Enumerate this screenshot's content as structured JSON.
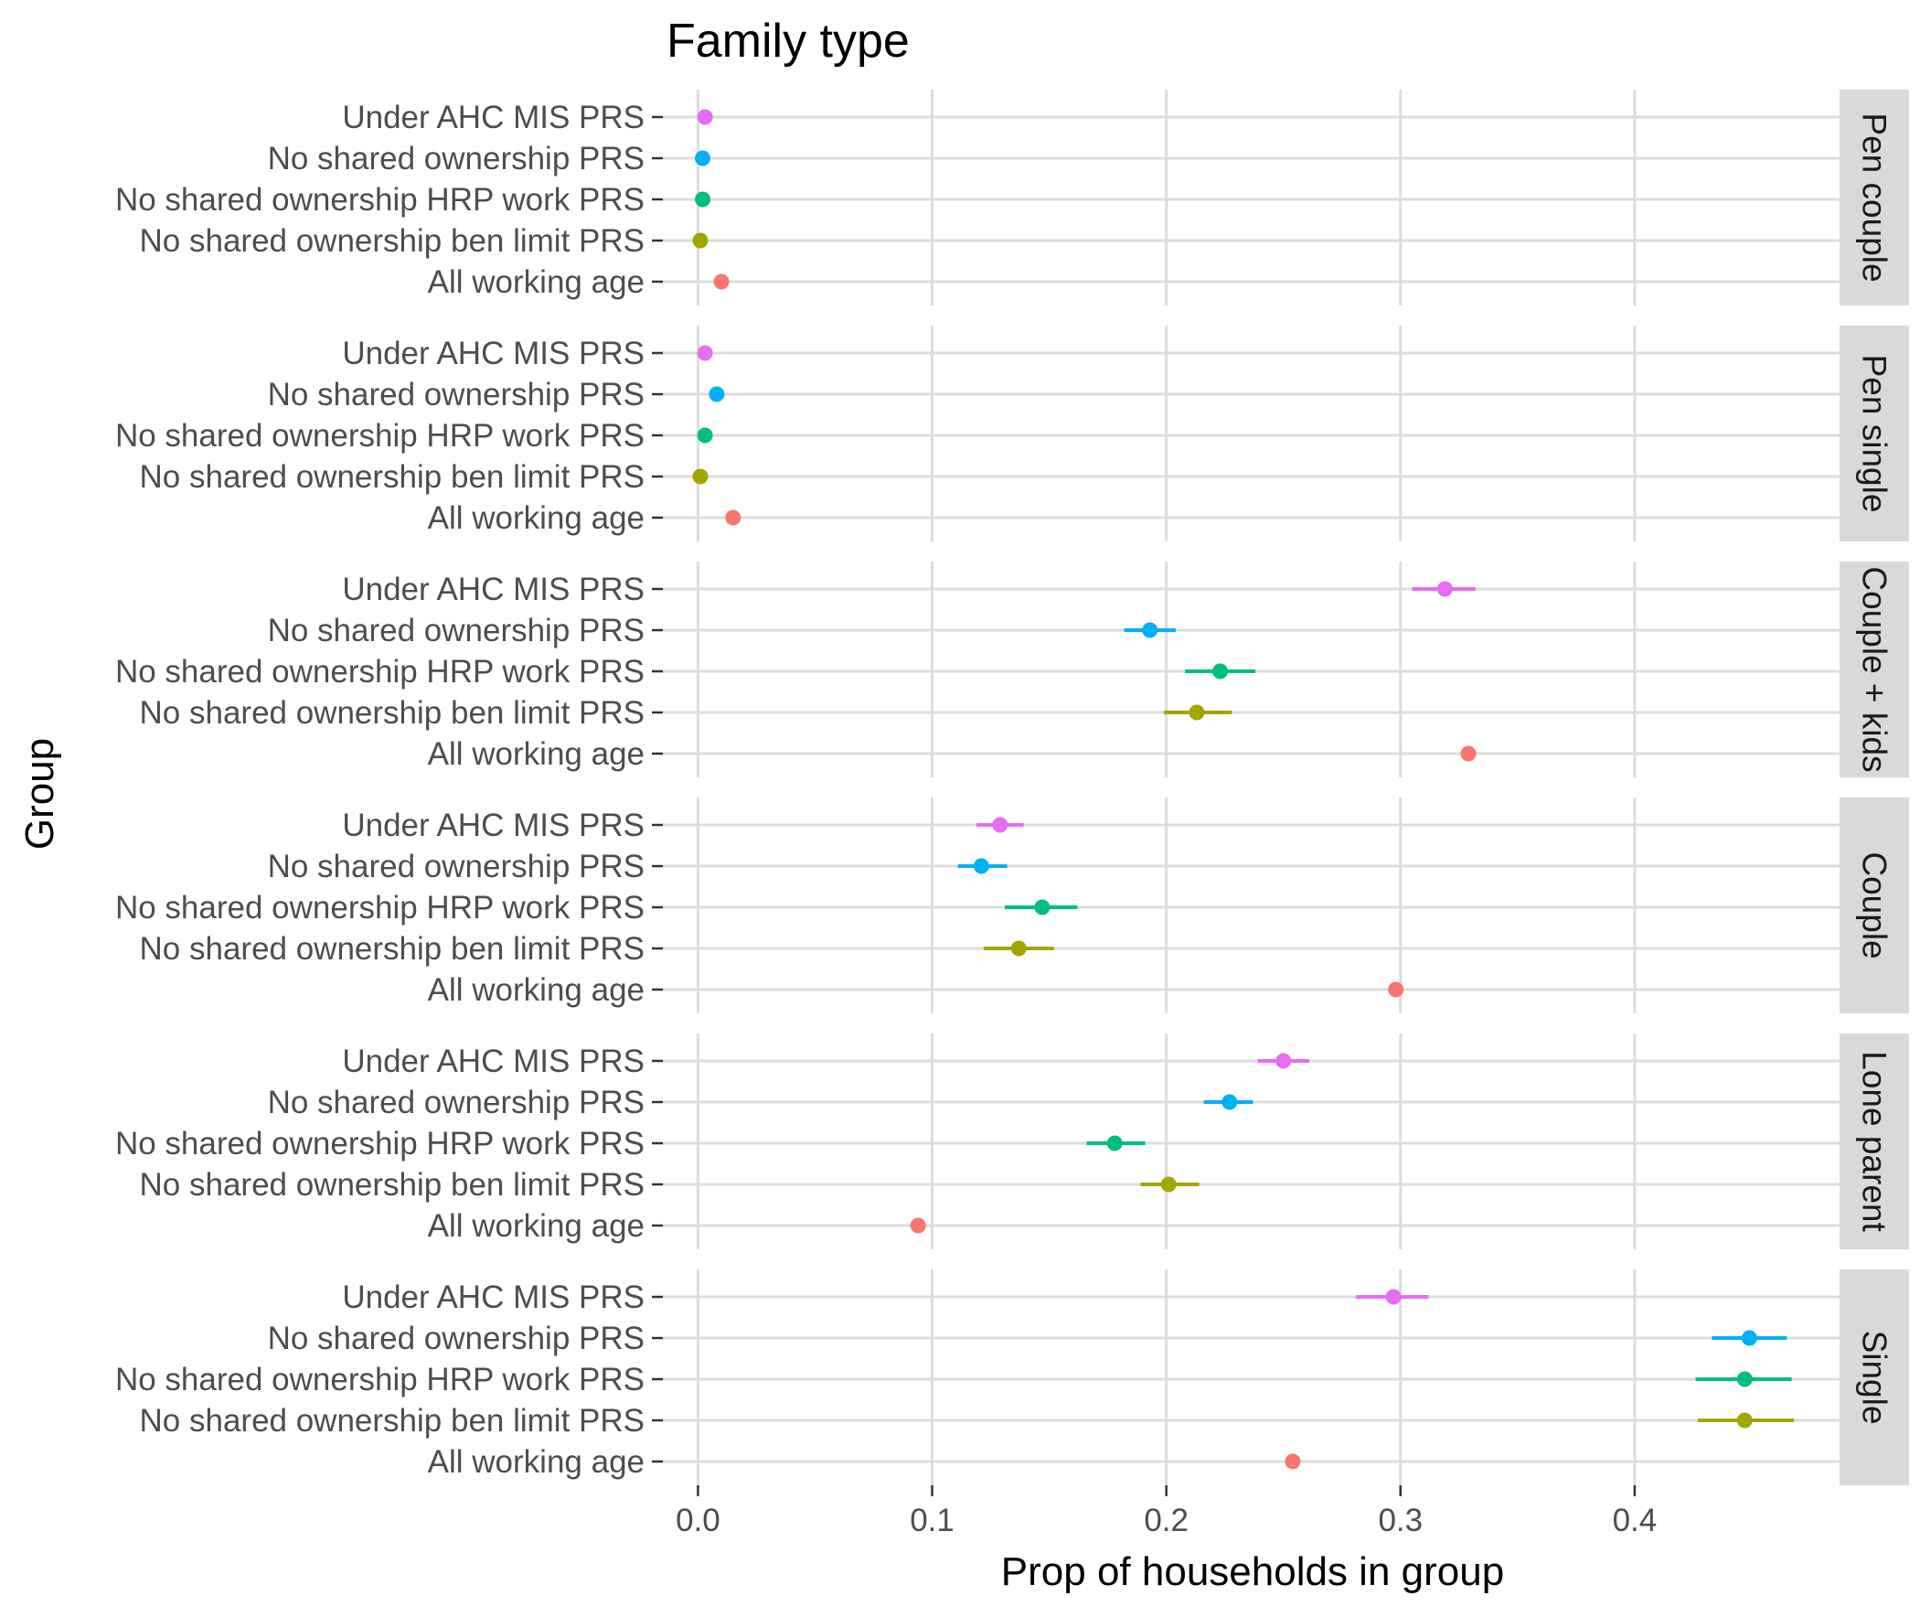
{
  "chart_data": {
    "type": "dot-errorbar-faceted",
    "title": "Family type",
    "xlabel": "Prop of households in group",
    "ylabel": "Group",
    "xlim": [
      -0.015,
      0.4875
    ],
    "x_ticks": [
      0.0,
      0.1,
      0.2,
      0.3,
      0.4
    ],
    "x_tick_labels": [
      "0.0",
      "0.1",
      "0.2",
      "0.3",
      "0.4"
    ],
    "grid": true,
    "categories": [
      "Under AHC MIS PRS",
      "No shared ownership PRS",
      "No shared ownership HRP work PRS",
      "No shared ownership ben limit PRS",
      "All working age"
    ],
    "colors": [
      "#E76BF3",
      "#00B0F6",
      "#00BF7D",
      "#A3A500",
      "#F8766D"
    ],
    "facets": [
      {
        "label": "Pen couple",
        "points": [
          {
            "value": 0.003,
            "low": 0.003,
            "high": 0.003
          },
          {
            "value": 0.002,
            "low": 0.002,
            "high": 0.002
          },
          {
            "value": 0.002,
            "low": 0.002,
            "high": 0.002
          },
          {
            "value": 0.001,
            "low": 0.001,
            "high": 0.001
          },
          {
            "value": 0.01,
            "low": 0.01,
            "high": 0.01
          }
        ]
      },
      {
        "label": "Pen single",
        "points": [
          {
            "value": 0.003,
            "low": 0.003,
            "high": 0.003
          },
          {
            "value": 0.008,
            "low": 0.008,
            "high": 0.008
          },
          {
            "value": 0.003,
            "low": 0.003,
            "high": 0.003
          },
          {
            "value": 0.001,
            "low": 0.001,
            "high": 0.001
          },
          {
            "value": 0.015,
            "low": 0.015,
            "high": 0.015
          }
        ]
      },
      {
        "label": "Couple + kids",
        "points": [
          {
            "value": 0.319,
            "low": 0.305,
            "high": 0.332
          },
          {
            "value": 0.193,
            "low": 0.182,
            "high": 0.204
          },
          {
            "value": 0.223,
            "low": 0.208,
            "high": 0.238
          },
          {
            "value": 0.213,
            "low": 0.199,
            "high": 0.228
          },
          {
            "value": 0.329,
            "low": 0.329,
            "high": 0.329
          }
        ]
      },
      {
        "label": "Couple",
        "points": [
          {
            "value": 0.129,
            "low": 0.119,
            "high": 0.139
          },
          {
            "value": 0.121,
            "low": 0.111,
            "high": 0.132
          },
          {
            "value": 0.147,
            "low": 0.131,
            "high": 0.162
          },
          {
            "value": 0.137,
            "low": 0.122,
            "high": 0.152
          },
          {
            "value": 0.298,
            "low": 0.298,
            "high": 0.298
          }
        ]
      },
      {
        "label": "Lone parent",
        "points": [
          {
            "value": 0.25,
            "low": 0.239,
            "high": 0.261
          },
          {
            "value": 0.227,
            "low": 0.216,
            "high": 0.237
          },
          {
            "value": 0.178,
            "low": 0.166,
            "high": 0.191
          },
          {
            "value": 0.201,
            "low": 0.189,
            "high": 0.214
          },
          {
            "value": 0.094,
            "low": 0.094,
            "high": 0.094
          }
        ]
      },
      {
        "label": "Single",
        "points": [
          {
            "value": 0.297,
            "low": 0.281,
            "high": 0.312
          },
          {
            "value": 0.449,
            "low": 0.433,
            "high": 0.465
          },
          {
            "value": 0.447,
            "low": 0.426,
            "high": 0.467
          },
          {
            "value": 0.447,
            "low": 0.427,
            "high": 0.468
          },
          {
            "value": 0.254,
            "low": 0.254,
            "high": 0.254
          }
        ]
      }
    ]
  }
}
